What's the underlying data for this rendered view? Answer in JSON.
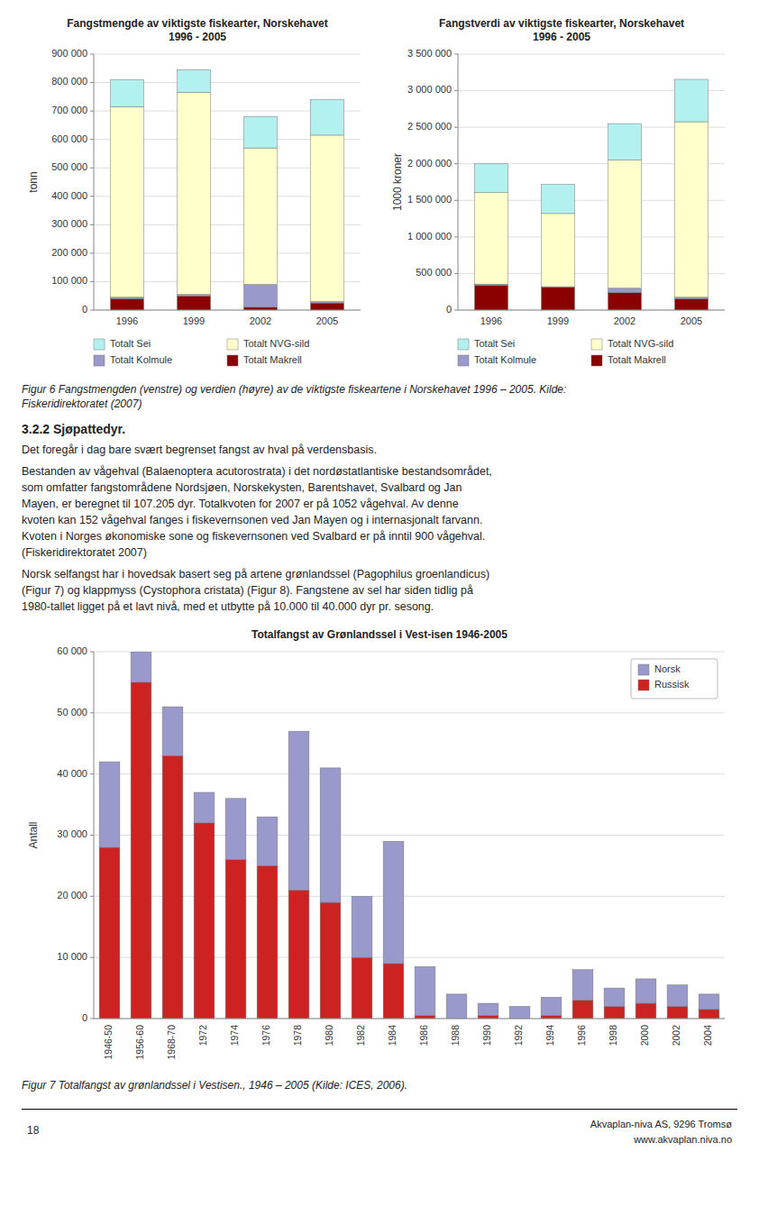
{
  "chart_data": [
    {
      "type": "bar",
      "stacked": true,
      "grid": true,
      "legend": "bottom",
      "title": "Fangstmengde av viktigste fiskearter, Norskehavet\n1996 - 2005",
      "y_label": "tonn",
      "categories": [
        "1996",
        "1999",
        "2002",
        "2005"
      ],
      "series": [
        {
          "name": "Totalt Makrell",
          "color": "#8b0000",
          "values": [
            40000,
            50000,
            10000,
            25000
          ]
        },
        {
          "name": "Totalt Kolmule",
          "color": "#9999cc",
          "values": [
            5000,
            5000,
            80000,
            5000
          ]
        },
        {
          "name": "Totalt NVG-sild",
          "color": "#ffffcc",
          "values": [
            670000,
            710000,
            480000,
            585000
          ]
        },
        {
          "name": "Totalt Sei",
          "color": "#b3f0f0",
          "values": [
            95000,
            80000,
            110000,
            125000
          ]
        }
      ],
      "ylim": [
        0,
        900000
      ],
      "yticks": [
        0,
        {
          "value": 100000,
          "label": "100 000"
        },
        {
          "value": 200000,
          "label": "200 000"
        },
        {
          "value": 300000,
          "label": "300 000"
        },
        {
          "value": 400000,
          "label": "400 000"
        },
        {
          "value": 500000,
          "label": "500 000"
        },
        {
          "value": 600000,
          "label": "600 000"
        },
        {
          "value": 700000,
          "label": "700 000"
        },
        {
          "value": 800000,
          "label": "800 000"
        },
        {
          "value": 900000,
          "label": "900 000"
        }
      ]
    },
    {
      "type": "bar",
      "stacked": true,
      "grid": true,
      "legend": "bottom",
      "title": "Fangstverdi av viktigste fiskearter, Norskehavet\n1996 - 2005",
      "y_label": "1000 kroner",
      "categories": [
        "1996",
        "1999",
        "2002",
        "2005"
      ],
      "series": [
        {
          "name": "Totalt Makrell",
          "color": "#8b0000",
          "values": [
            340000,
            310000,
            240000,
            155000
          ]
        },
        {
          "name": "Totalt Kolmule",
          "color": "#9999cc",
          "values": [
            15000,
            10000,
            60000,
            20000
          ]
        },
        {
          "name": "Totalt NVG-sild",
          "color": "#ffffcc",
          "values": [
            1250000,
            1000000,
            1750000,
            2400000
          ]
        },
        {
          "name": "Totalt Sei",
          "color": "#b3f0f0",
          "values": [
            400000,
            400000,
            500000,
            580000
          ]
        }
      ],
      "ylim": [
        0,
        3500000
      ],
      "yticks": [
        0,
        {
          "value": 500000,
          "label": "500 000"
        },
        {
          "value": 1000000,
          "label": "1 000 000"
        },
        {
          "value": 1500000,
          "label": "1 500 000"
        },
        {
          "value": 2000000,
          "label": "2 000 000"
        },
        {
          "value": 2500000,
          "label": "2 500 000"
        },
        {
          "value": 3000000,
          "label": "3 000 000"
        },
        {
          "value": 3500000,
          "label": "3 500 000"
        }
      ]
    },
    {
      "type": "bar",
      "stacked": true,
      "grid": true,
      "legend": "upper right",
      "title": "Totalfangst av Grønlandssel i Vest-isen 1946-2005",
      "y_label": "Antall",
      "categories": [
        "1946-50",
        "1956-60",
        "1968-70",
        "1972",
        "1974",
        "1976",
        "1978",
        "1980",
        "1982",
        "1984",
        "1986",
        "1988",
        "1990",
        "1992",
        "1994",
        "1996",
        "1998",
        "2000",
        "2002",
        "2004"
      ],
      "series": [
        {
          "name": "Russisk",
          "color": "#cc2222",
          "values": [
            28000,
            55000,
            43000,
            32000,
            26000,
            25000,
            21000,
            19000,
            10000,
            9000,
            500,
            0,
            500,
            0,
            500,
            3000,
            2000,
            2500,
            2000,
            1500
          ]
        },
        {
          "name": "Norsk",
          "color": "#9999cc",
          "values": [
            14000,
            5000,
            8000,
            5000,
            10000,
            8000,
            26000,
            22000,
            10000,
            20000,
            8000,
            4000,
            2000,
            2000,
            3000,
            5000,
            3000,
            4000,
            3500,
            2500
          ]
        }
      ],
      "ylim": [
        0,
        60000
      ],
      "yticks": [
        0,
        {
          "value": 10000,
          "label": "10 000"
        },
        {
          "value": 20000,
          "label": "20 000"
        },
        {
          "value": 30000,
          "label": "30 000"
        },
        {
          "value": 40000,
          "label": "40 000"
        },
        {
          "value": 50000,
          "label": "50 000"
        },
        {
          "value": 60000,
          "label": "60 000"
        }
      ]
    }
  ],
  "page": {
    "figure_caption_1": [
      "Figur 6 Fangstmengden (venstre) og verdien (høyre) av de viktigste fiskeartene i Norskehavet 1996 – 2005. Kilde:",
      "Fiskeridirektoratet (2007)"
    ],
    "heading": "3.2.2 Sjøpattedyr.",
    "paragraphs": [
      [
        "Det foregår i dag bare svært begrenset fangst av hval på verdensbasis."
      ],
      [
        "Bestanden av vågehval (Balaenoptera acutorostrata) i det nordøstatlantiske bestandsområdet,",
        "som omfatter fangstområdene Nordsjøen, Norskekysten, Barentshavet, Svalbard og Jan",
        "Mayen, er beregnet til 107.205 dyr. Totalkvoten for 2007 er på 1052 vågehval. Av denne",
        "kvoten kan 152 vågehval fanges i fiskevernsonen ved Jan Mayen og i internasjonalt farvann.",
        "Kvoten i Norges økonomiske sone og fiskevernsonen ved Svalbard er på inntil 900 vågehval.",
        "(Fiskeridirektoratet 2007)"
      ],
      [
        "Norsk selfangst har i hovedsak basert seg på artene grønlandssel (Pagophilus groenlandicus)",
        "(Figur 7) og klappmyss (Cystophora cristata) (Figur 8). Fangstene av sel har siden tidlig på",
        "1980-tallet ligget på et lavt nivå, med et utbytte på 10.000 til 40.000 dyr pr. sesong."
      ]
    ],
    "figure_caption_2": "Figur 7 Totalfangst av grønlandssel i Vestisen., 1946 – 2005 (Kilde: ICES, 2006).",
    "footer": {
      "page_number": "18",
      "lines": [
        "Akvaplan-niva AS, 9296 Tromsø",
        "www.akvaplan.niva.no"
      ]
    }
  }
}
